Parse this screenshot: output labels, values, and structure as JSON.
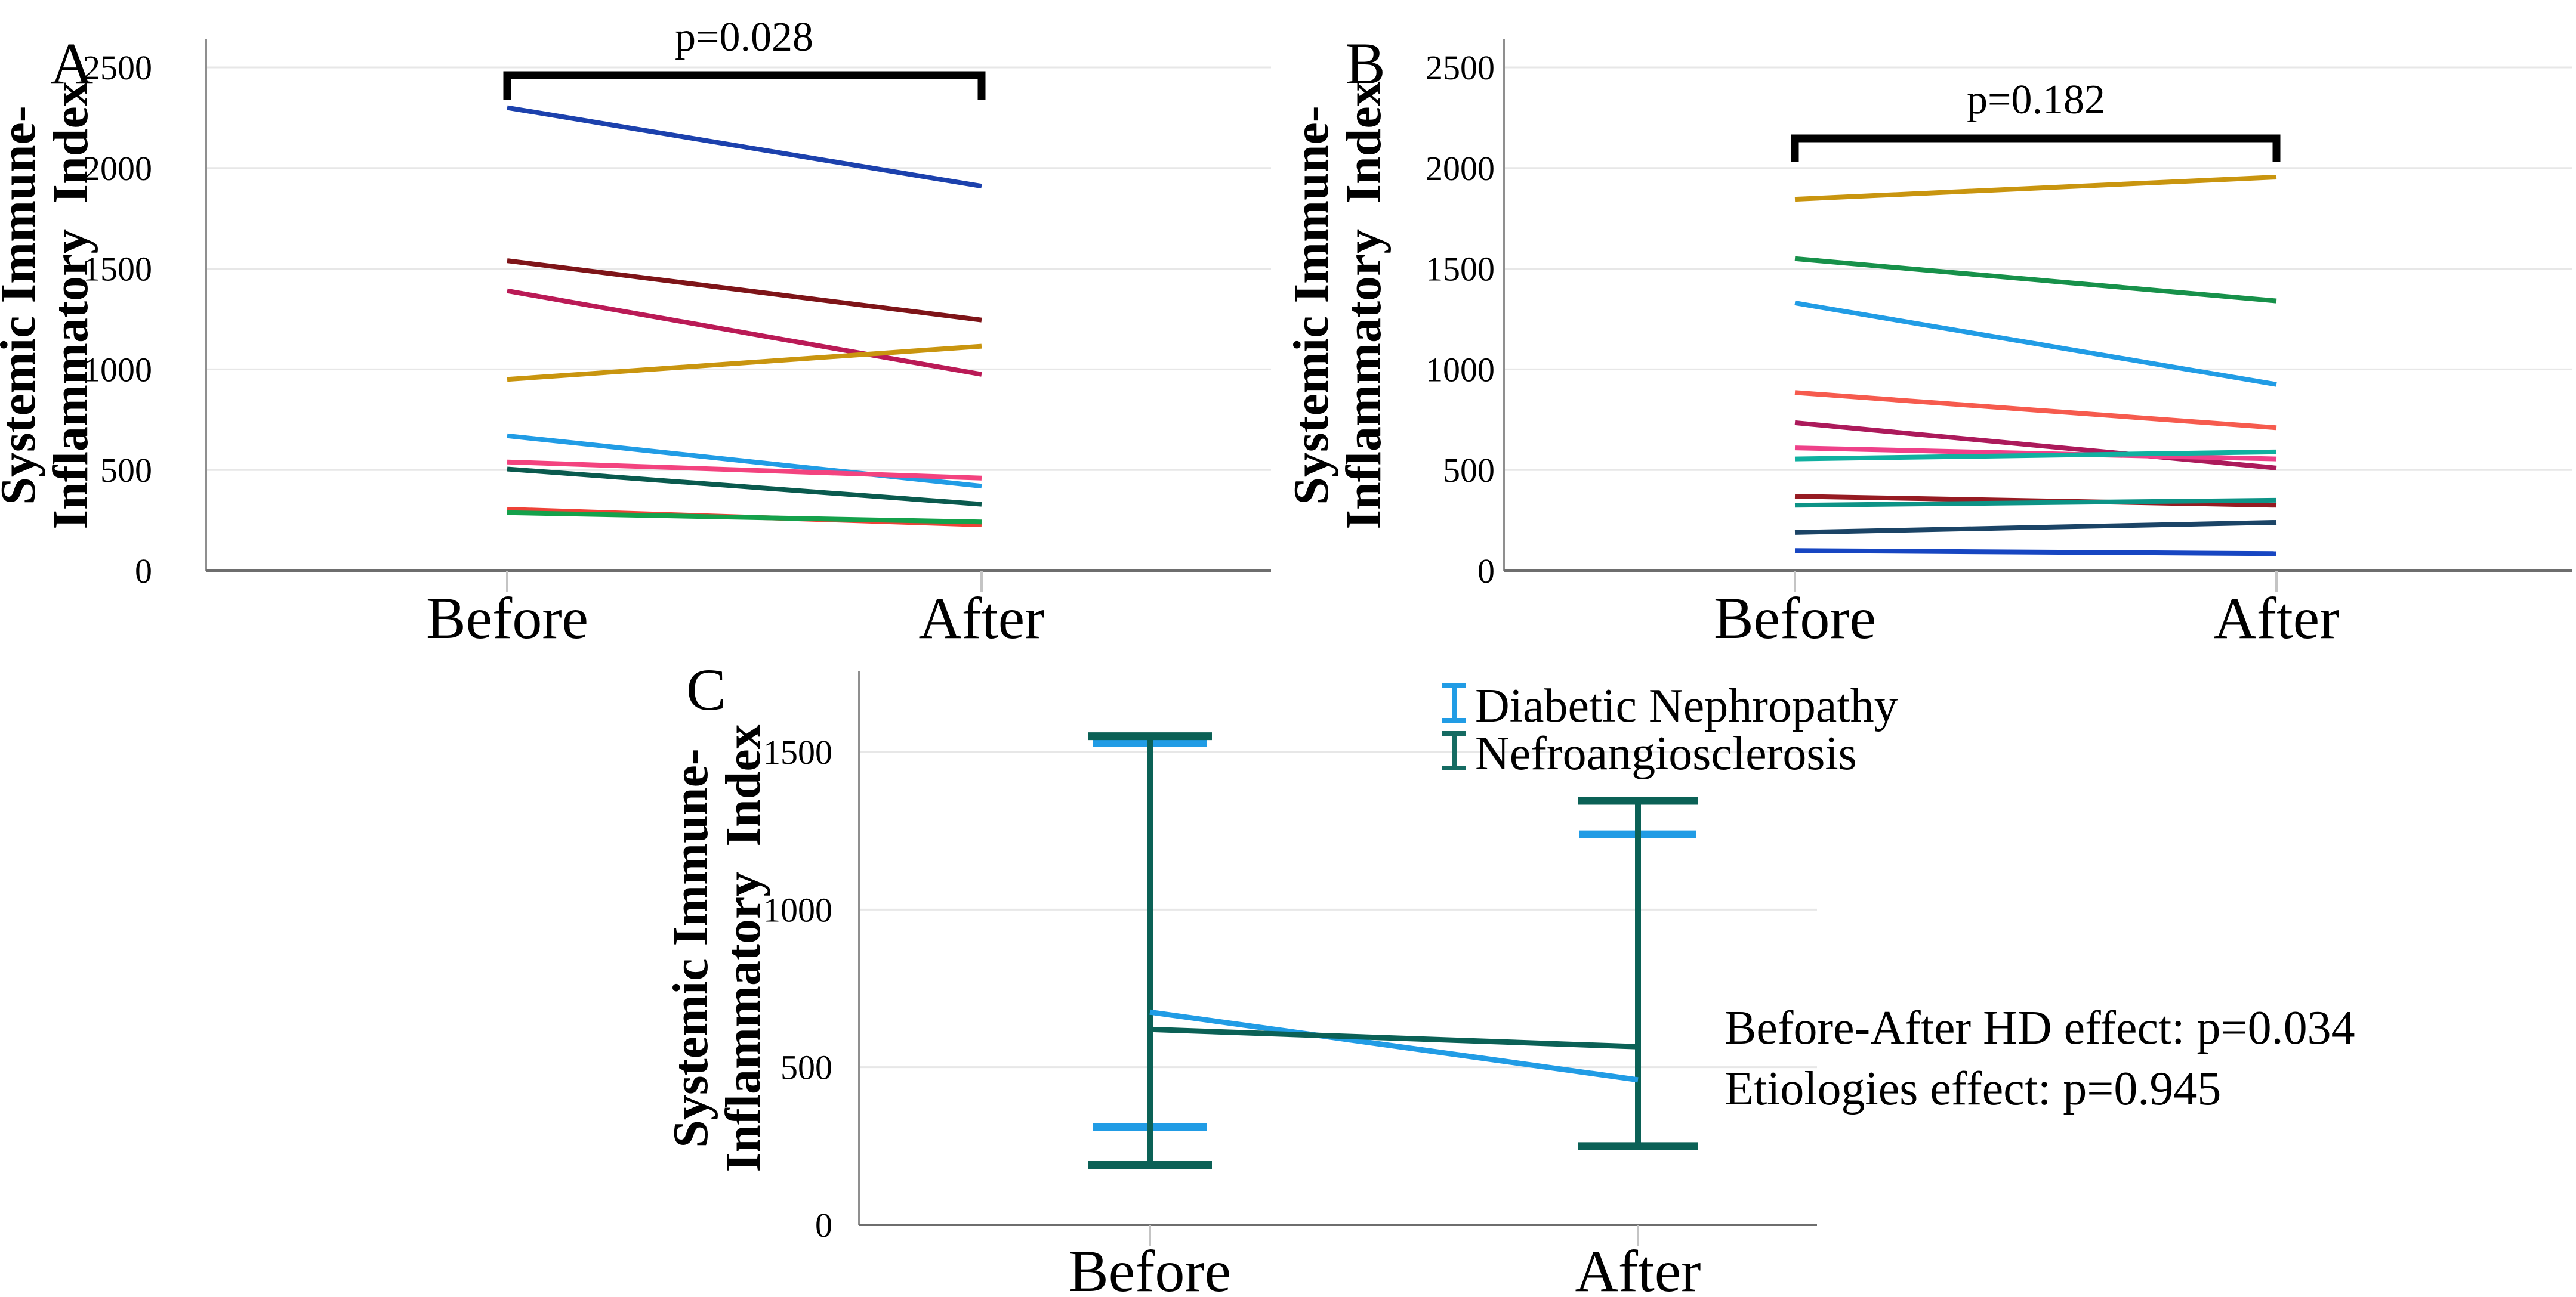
{
  "figure": {
    "y_axis_title": "Systemic Immune-Inflammatory Index",
    "x_categories": [
      "Before",
      "After"
    ]
  },
  "chart_data": [
    {
      "panel": "A",
      "type": "line",
      "categories": [
        "Before",
        "After"
      ],
      "ylabel_lines": [
        "Systemic Immune-",
        "Inflammatory  Index"
      ],
      "ylim": [
        0,
        2500
      ],
      "yticks": [
        0,
        500,
        1000,
        1500,
        2000,
        2500
      ],
      "grid": true,
      "significance": {
        "label": "p=0.028",
        "compares": [
          "Before",
          "After"
        ]
      },
      "series": [
        {
          "color": "#1C41AD",
          "values": [
            2300,
            1910
          ]
        },
        {
          "color": "#7E1418",
          "values": [
            1540,
            1245
          ]
        },
        {
          "color": "#BA1A56",
          "values": [
            1390,
            975
          ]
        },
        {
          "color": "#C9950F",
          "values": [
            950,
            1115
          ]
        },
        {
          "color": "#219CE5",
          "values": [
            670,
            420
          ]
        },
        {
          "color": "#F3437F",
          "values": [
            540,
            460
          ]
        },
        {
          "color": "#0A5A4E",
          "values": [
            505,
            330
          ]
        },
        {
          "color": "#EE4237",
          "values": [
            305,
            228
          ]
        },
        {
          "color": "#14A14B",
          "values": [
            288,
            242
          ]
        }
      ]
    },
    {
      "panel": "B",
      "type": "line",
      "categories": [
        "Before",
        "After"
      ],
      "ylabel_lines": [
        "Systemic Immune-",
        "Inflammatory  Index"
      ],
      "ylim": [
        0,
        2500
      ],
      "yticks": [
        0,
        500,
        1000,
        1500,
        2000,
        2500
      ],
      "grid": true,
      "significance": {
        "label": "p=0.182",
        "compares": [
          "Before",
          "After"
        ]
      },
      "series": [
        {
          "color": "#C9950F",
          "values": [
            1845,
            1955
          ]
        },
        {
          "color": "#17914A",
          "values": [
            1550,
            1340
          ]
        },
        {
          "color": "#219CE5",
          "values": [
            1330,
            925
          ]
        },
        {
          "color": "#F65B4E",
          "values": [
            885,
            710
          ]
        },
        {
          "color": "#AC1A5B",
          "values": [
            735,
            510
          ]
        },
        {
          "color": "#EE4189",
          "values": [
            610,
            555
          ]
        },
        {
          "color": "#10B0A0",
          "values": [
            555,
            590
          ]
        },
        {
          "color": "#961B22",
          "values": [
            370,
            325
          ]
        },
        {
          "color": "#0D9386",
          "values": [
            325,
            350
          ]
        },
        {
          "color": "#1B4466",
          "values": [
            190,
            240
          ]
        },
        {
          "color": "#1746C2",
          "values": [
            100,
            85
          ]
        }
      ]
    },
    {
      "panel": "C",
      "type": "line-errorbar",
      "categories": [
        "Before",
        "After"
      ],
      "ylabel_lines": [
        "Systemic Immune-",
        "Inflammatory  Index"
      ],
      "ylim": [
        0,
        1750
      ],
      "yticks": [
        0,
        500,
        1000,
        1500
      ],
      "grid": true,
      "series": [
        {
          "name": "Diabetic Nephropathy",
          "color": "#219CE5",
          "means": [
            675,
            460
          ],
          "error_low": [
            310,
            null
          ],
          "error_high": [
            1540,
            1250
          ]
        },
        {
          "name": "Nefroangiosclerosis",
          "color": "#0B6156",
          "means": [
            620,
            565
          ],
          "error_low": [
            190,
            250
          ],
          "error_high": [
            1550,
            1345
          ]
        }
      ],
      "stats_annotation": [
        "Before-After HD effect: p=0.034",
        "Etiologies effect: p=0.945"
      ]
    }
  ]
}
